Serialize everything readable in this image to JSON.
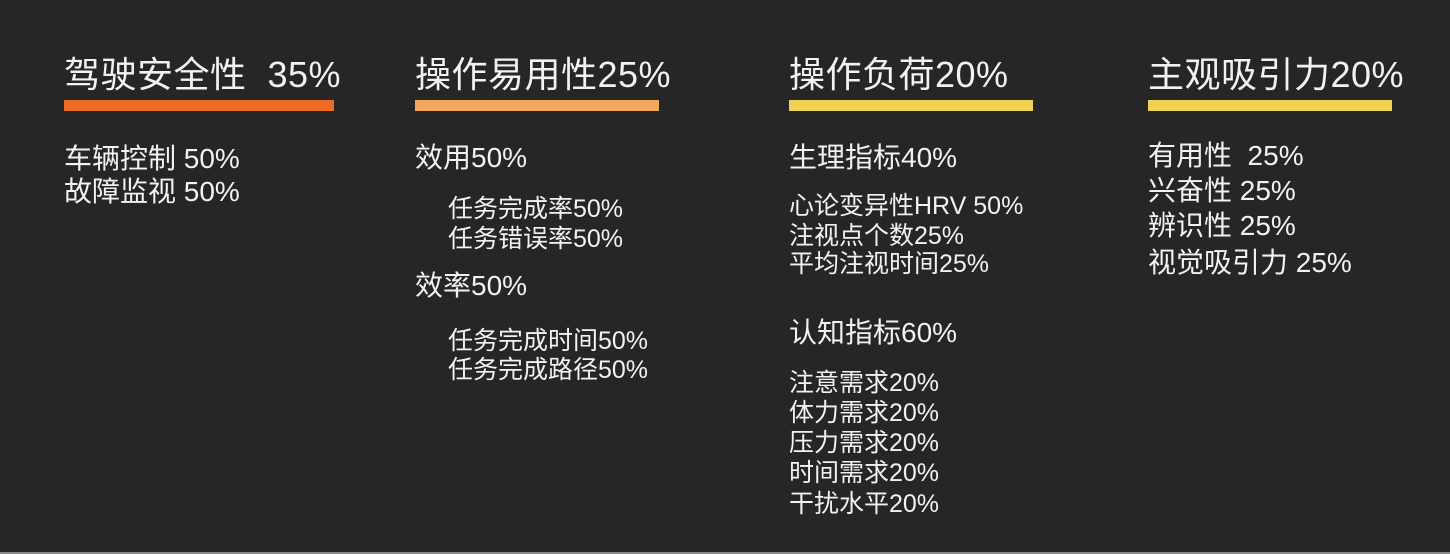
{
  "page": {
    "background_color": "#262626",
    "text_color": "#F2F2F2",
    "bottom_edge_color": "#8A8A8A"
  },
  "columns": [
    {
      "title": "驾驶安全性  35%",
      "weight": "35%",
      "bar_color": "#ED6B23",
      "items": [
        {
          "label": "车辆控制 50%",
          "level": 1
        },
        {
          "label": "故障监视 50%",
          "level": 1
        }
      ]
    },
    {
      "title": "操作易用性25%",
      "weight": "25%",
      "bar_color": "#F2A95D",
      "items": [
        {
          "label": "效用50%",
          "level": 1
        },
        {
          "label": "任务完成率50%",
          "level": 2
        },
        {
          "label": "任务错误率50%",
          "level": 2
        },
        {
          "label": "效率50%",
          "level": 1
        },
        {
          "label": "任务完成时间50%",
          "level": 2
        },
        {
          "label": "任务完成路径50%",
          "level": 2
        }
      ]
    },
    {
      "title": "操作负荷20%",
      "weight": "20%",
      "bar_color": "#EFD254",
      "items": [
        {
          "label": "生理指标40%",
          "level": 1
        },
        {
          "label": "心论变异性HRV 50%",
          "level": 2
        },
        {
          "label": "注视点个数25%",
          "level": 2
        },
        {
          "label": "平均注视时间25%",
          "level": 2
        },
        {
          "label": "认知指标60%",
          "level": 1
        },
        {
          "label": "注意需求20%",
          "level": 2
        },
        {
          "label": "体力需求20%",
          "level": 2
        },
        {
          "label": "压力需求20%",
          "level": 2
        },
        {
          "label": "时间需求20%",
          "level": 2
        },
        {
          "label": "干扰水平20%",
          "level": 2
        }
      ]
    },
    {
      "title": "主观吸引力20%",
      "weight": "20%",
      "bar_color": "#EFD254",
      "items": [
        {
          "label": "有用性  25%",
          "level": 1
        },
        {
          "label": "兴奋性 25%",
          "level": 1
        },
        {
          "label": "辨识性 25%",
          "level": 1
        },
        {
          "label": "视觉吸引力 25%",
          "level": 1
        }
      ]
    }
  ]
}
